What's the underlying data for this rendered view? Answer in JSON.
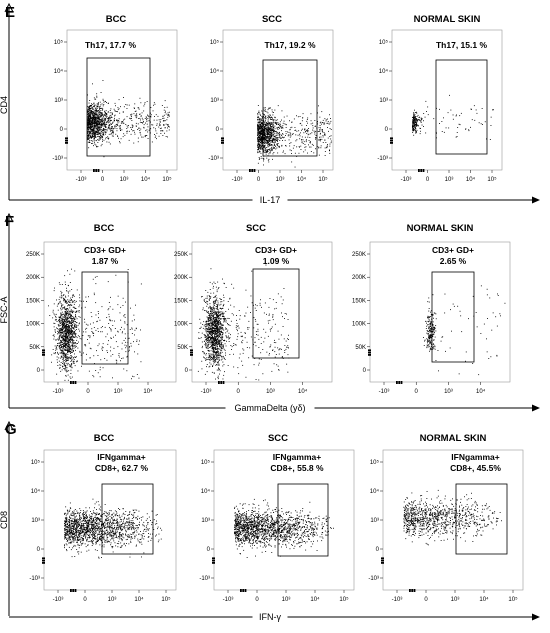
{
  "chart_data": [
    {
      "panel": "E",
      "type": "scatter",
      "xlabel": "IL-17",
      "ylabel": "CD4",
      "x_scale": "biexponential",
      "y_scale": "biexponential",
      "x_ticks": [
        "-10³",
        "0",
        "10³",
        "10⁴",
        "10⁵"
      ],
      "y_ticks": [
        "10⁵",
        "10⁴",
        "10³",
        "0",
        "-10³"
      ],
      "plots": [
        {
          "title": "BCC",
          "gate_label": "Th17, 17.7 %",
          "gate_percent": 17.7
        },
        {
          "title": "SCC",
          "gate_label": "Th17, 19.2 %",
          "gate_percent": 19.2
        },
        {
          "title": "NORMAL SKIN",
          "gate_label": "Th17, 15.1 %",
          "gate_percent": 15.1
        }
      ]
    },
    {
      "panel": "F",
      "type": "scatter",
      "xlabel": "GammaDelta (yδ)",
      "ylabel": "FSC-A",
      "x_scale": "biexponential",
      "y_scale": "linear",
      "ylim": [
        0,
        260000
      ],
      "x_ticks": [
        "-10³",
        "0",
        "10³",
        "10⁴"
      ],
      "y_ticks": [
        "250K",
        "200K",
        "150K",
        "100K",
        "50K",
        "0"
      ],
      "plots": [
        {
          "title": "BCC",
          "gate_label": [
            "CD3+ GD+",
            "1.87 %"
          ],
          "gate_percent": 1.87
        },
        {
          "title": "SCC",
          "gate_label": [
            "CD3+ GD+",
            "1.09 %"
          ],
          "gate_percent": 1.09
        },
        {
          "title": "NORMAL SKIN",
          "gate_label": [
            "CD3+ GD+",
            "2.65 %"
          ],
          "gate_percent": 2.65
        }
      ]
    },
    {
      "panel": "G",
      "type": "scatter",
      "xlabel": "IFN-γ",
      "ylabel": "CD8",
      "x_scale": "biexponential",
      "y_scale": "biexponential",
      "x_ticks": [
        "-10³",
        "0",
        "10³",
        "10⁴",
        "10⁵"
      ],
      "y_ticks": [
        "10⁵",
        "10⁴",
        "10³",
        "0",
        "-10³"
      ],
      "plots": [
        {
          "title": "BCC",
          "gate_label": [
            "IFNgamma+",
            "CD8+, 62.7 %"
          ],
          "gate_percent": 62.7
        },
        {
          "title": "SCC",
          "gate_label": [
            "IFNgamma+",
            "CD8+, 55.8 %"
          ],
          "gate_percent": 55.8
        },
        {
          "title": "NORMAL SKIN",
          "gate_label": [
            "IFNgamma+",
            "CD8+, 45.5%"
          ],
          "gate_percent": 45.5
        }
      ]
    }
  ]
}
